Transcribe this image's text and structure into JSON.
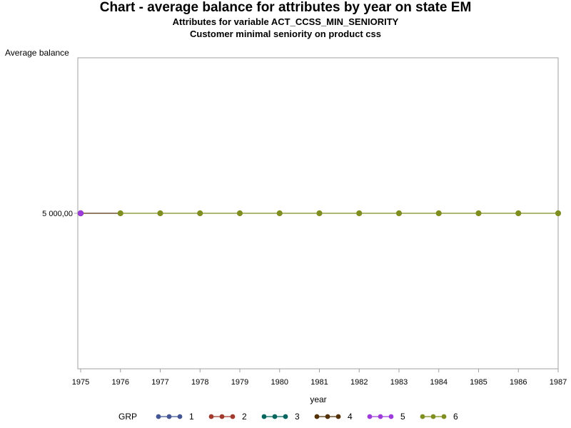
{
  "chart_data": {
    "type": "line",
    "title": "Chart - average balance for attributes by year on state EM",
    "subtitles": [
      "Attributes for variable ACT_CCSS_MIN_SENIORITY",
      "Customer minimal seniority on product css"
    ],
    "xlabel": "year",
    "ylabel": "Average balance",
    "x": [
      1975,
      1976,
      1977,
      1978,
      1979,
      1980,
      1981,
      1982,
      1983,
      1984,
      1985,
      1986,
      1987
    ],
    "xlim": [
      1975,
      1987
    ],
    "ylim": [
      0,
      10000
    ],
    "y_ticks": [
      {
        "value": 5000,
        "label": "5 000,00"
      }
    ],
    "grid": false,
    "legend": {
      "title": "GRP",
      "position": "bottom"
    },
    "series": [
      {
        "name": "1",
        "color": "#445694",
        "points": [
          {
            "x": 1975,
            "y": 5000
          }
        ]
      },
      {
        "name": "2",
        "color": "#A23A2E",
        "points": [
          {
            "x": 1975,
            "y": 5000
          }
        ]
      },
      {
        "name": "3",
        "color": "#01665E",
        "points": [
          {
            "x": 1975,
            "y": 5000
          }
        ]
      },
      {
        "name": "4",
        "color": "#543005",
        "points": [
          {
            "x": 1975,
            "y": 5000
          }
        ]
      },
      {
        "name": "5",
        "color": "#9D3CDB",
        "points": [
          {
            "x": 1975,
            "y": 5000
          }
        ]
      },
      {
        "name": "6",
        "color": "#7F8E1F",
        "points": [
          {
            "x": 1976,
            "y": 5000
          },
          {
            "x": 1977,
            "y": 5000
          },
          {
            "x": 1978,
            "y": 5000
          },
          {
            "x": 1979,
            "y": 5000
          },
          {
            "x": 1980,
            "y": 5000
          },
          {
            "x": 1981,
            "y": 5000
          },
          {
            "x": 1982,
            "y": 5000
          },
          {
            "x": 1983,
            "y": 5000
          },
          {
            "x": 1984,
            "y": 5000
          },
          {
            "x": 1985,
            "y": 5000
          },
          {
            "x": 1986,
            "y": 5000
          },
          {
            "x": 1987,
            "y": 5000
          }
        ]
      }
    ],
    "axis_color": "#a0a0a0"
  }
}
